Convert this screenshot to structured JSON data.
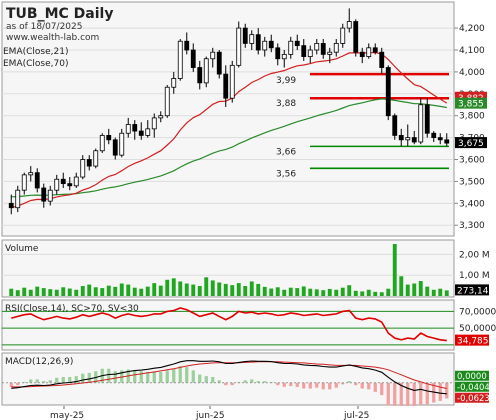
{
  "header": {
    "title": "TUB_MC Daily",
    "date": "as of 18/07/2025",
    "site": "www.wealth-lab.com",
    "ema21": "EMA(Close,21)",
    "ema70": "EMA(Close,70)"
  },
  "colors": {
    "bg": "#ffffff",
    "plot_bg": "#f3f3f3",
    "up_candle": "#ffffff",
    "down_candle": "#000000",
    "ema21": "#d22020",
    "ema70": "#2a8a2a",
    "resistance": "#e00000",
    "support": "#008800",
    "volume": "#1fa81f",
    "rsi": "#e00000",
    "rsi_band": "#1a8a1a"
  },
  "price_levels": [
    {
      "label": "3,99",
      "value": 3990,
      "kind": "resistance"
    },
    {
      "label": "3,88",
      "value": 3880,
      "kind": "resistance"
    },
    {
      "label": "3,66",
      "value": 3660,
      "kind": "support"
    },
    {
      "label": "3,56",
      "value": 3560,
      "kind": "support"
    }
  ],
  "price_badges": [
    {
      "text": "3,882",
      "value": 3882,
      "color": "#d22020"
    },
    {
      "text": "3,855",
      "value": 3855,
      "color": "#2a8a2a"
    },
    {
      "text": "3,675",
      "value": 3675,
      "color": "#000000"
    }
  ],
  "price_ticks": [
    "4,200",
    "4,100",
    "4,000",
    "3,900",
    "3,800",
    "3,700",
    "3,600",
    "3,500",
    "3,400",
    "3,300"
  ],
  "volume": {
    "label": "Volume",
    "ticks": [
      "2,00 M",
      "1,00 M"
    ],
    "badge": "273,148"
  },
  "rsi": {
    "label": "RSI(Close,14), SC>70, SV<30",
    "ticks": [
      "70,0000",
      "50,0000"
    ],
    "badge": "34,7852"
  },
  "macd": {
    "label": "MACD(12,26,9)",
    "badge_top": "0,0000",
    "badge_mid": "-0,0404",
    "badge_bot": "-0,0623"
  },
  "x_axis": {
    "labels": [
      "may-25",
      "jun-25",
      "jul-25"
    ]
  },
  "chart_data": {
    "type": "candlestick",
    "title": "TUB_MC Daily",
    "ylim": [
      3260,
      4310
    ],
    "candles": [
      [
        3400,
        3440,
        3350,
        3380
      ],
      [
        3380,
        3480,
        3360,
        3460
      ],
      [
        3460,
        3540,
        3440,
        3530
      ],
      [
        3530,
        3570,
        3500,
        3540
      ],
      [
        3540,
        3560,
        3450,
        3470
      ],
      [
        3470,
        3490,
        3380,
        3410
      ],
      [
        3410,
        3480,
        3390,
        3460
      ],
      [
        3460,
        3530,
        3440,
        3510
      ],
      [
        3510,
        3540,
        3470,
        3490
      ],
      [
        3490,
        3520,
        3460,
        3480
      ],
      [
        3480,
        3540,
        3470,
        3520
      ],
      [
        3520,
        3620,
        3510,
        3600
      ],
      [
        3600,
        3620,
        3550,
        3570
      ],
      [
        3570,
        3650,
        3560,
        3640
      ],
      [
        3640,
        3720,
        3630,
        3710
      ],
      [
        3710,
        3740,
        3670,
        3690
      ],
      [
        3690,
        3700,
        3600,
        3620
      ],
      [
        3620,
        3740,
        3610,
        3720
      ],
      [
        3720,
        3790,
        3700,
        3760
      ],
      [
        3760,
        3780,
        3690,
        3730
      ],
      [
        3730,
        3770,
        3690,
        3710
      ],
      [
        3710,
        3780,
        3700,
        3740
      ],
      [
        3740,
        3810,
        3700,
        3790
      ],
      [
        3790,
        3820,
        3770,
        3800
      ],
      [
        3800,
        3940,
        3790,
        3930
      ],
      [
        3930,
        4000,
        3900,
        3970
      ],
      [
        3970,
        4150,
        3960,
        4140
      ],
      [
        4140,
        4180,
        4080,
        4100
      ],
      [
        4100,
        4130,
        4000,
        4020
      ],
      [
        4020,
        4050,
        3920,
        3950
      ],
      [
        3950,
        4070,
        3930,
        4060
      ],
      [
        4060,
        4110,
        4020,
        4090
      ],
      [
        4090,
        4100,
        3970,
        3990
      ],
      [
        3990,
        4030,
        3840,
        3880
      ],
      [
        3880,
        4050,
        3860,
        4030
      ],
      [
        4030,
        4230,
        4020,
        4200
      ],
      [
        4200,
        4220,
        4110,
        4130
      ],
      [
        4130,
        4190,
        4100,
        4170
      ],
      [
        4170,
        4200,
        4080,
        4100
      ],
      [
        4100,
        4160,
        4070,
        4140
      ],
      [
        4140,
        4170,
        4090,
        4110
      ],
      [
        4110,
        4130,
        4030,
        4060
      ],
      [
        4060,
        4100,
        4020,
        4080
      ],
      [
        4080,
        4160,
        4060,
        4140
      ],
      [
        4140,
        4170,
        4100,
        4120
      ],
      [
        4120,
        4150,
        4050,
        4070
      ],
      [
        4070,
        4120,
        4040,
        4100
      ],
      [
        4100,
        4150,
        4080,
        4130
      ],
      [
        4130,
        4150,
        4060,
        4080
      ],
      [
        4080,
        4110,
        4040,
        4090
      ],
      [
        4090,
        4150,
        4070,
        4130
      ],
      [
        4130,
        4220,
        4110,
        4200
      ],
      [
        4200,
        4290,
        4180,
        4230
      ],
      [
        4230,
        4240,
        4070,
        4090
      ],
      [
        4090,
        4110,
        4040,
        4070
      ],
      [
        4070,
        4130,
        4060,
        4110
      ],
      [
        4110,
        4130,
        4080,
        4090
      ],
      [
        4090,
        4110,
        3990,
        4020
      ],
      [
        4020,
        4030,
        3780,
        3800
      ],
      [
        3800,
        3810,
        3690,
        3710
      ],
      [
        3710,
        3740,
        3660,
        3690
      ],
      [
        3690,
        3760,
        3660,
        3700
      ],
      [
        3700,
        3730,
        3670,
        3680
      ],
      [
        3680,
        3880,
        3670,
        3850
      ],
      [
        3850,
        3880,
        3700,
        3720
      ],
      [
        3720,
        3730,
        3680,
        3700
      ],
      [
        3700,
        3720,
        3670,
        3690
      ],
      [
        3690,
        3720,
        3660,
        3675
      ]
    ],
    "volume": [
      0.35,
      0.28,
      0.4,
      0.3,
      0.45,
      0.38,
      0.33,
      0.3,
      0.42,
      0.36,
      0.3,
      0.48,
      0.55,
      0.42,
      0.38,
      0.5,
      0.44,
      0.6,
      0.55,
      0.4,
      0.35,
      0.45,
      0.62,
      0.5,
      0.78,
      0.85,
      0.7,
      0.6,
      0.55,
      0.48,
      0.9,
      0.75,
      0.65,
      0.58,
      0.52,
      0.62,
      0.48,
      0.7,
      0.58,
      0.44,
      0.36,
      0.42,
      0.3,
      0.4,
      0.38,
      0.46,
      0.35,
      0.32,
      0.28,
      0.34,
      0.3,
      0.4,
      0.52,
      0.25,
      0.22,
      0.3,
      0.2,
      0.18,
      0.35,
      2.5,
      0.95,
      0.55,
      0.6,
      0.72,
      0.45,
      0.3,
      0.35,
      0.27
    ],
    "rsi": [
      62,
      64,
      66,
      67,
      63,
      60,
      62,
      64,
      62,
      61,
      63,
      66,
      64,
      66,
      68,
      66,
      62,
      65,
      67,
      65,
      64,
      65,
      67,
      67,
      70,
      71,
      74,
      72,
      68,
      64,
      66,
      68,
      64,
      60,
      64,
      70,
      68,
      69,
      67,
      68,
      67,
      65,
      66,
      68,
      67,
      65,
      66,
      67,
      65,
      66,
      67,
      70,
      71,
      62,
      60,
      62,
      61,
      57,
      44,
      38,
      36,
      38,
      37,
      44,
      40,
      38,
      36,
      35
    ],
    "macd": [
      -0.02,
      -0.018,
      -0.014,
      -0.01,
      -0.009,
      -0.01,
      -0.008,
      -0.004,
      -0.001,
      0.001,
      0.004,
      0.01,
      0.014,
      0.019,
      0.026,
      0.03,
      0.031,
      0.036,
      0.041,
      0.044,
      0.046,
      0.049,
      0.053,
      0.056,
      0.062,
      0.068,
      0.076,
      0.08,
      0.08,
      0.078,
      0.078,
      0.079,
      0.076,
      0.07,
      0.07,
      0.074,
      0.077,
      0.079,
      0.078,
      0.078,
      0.077,
      0.073,
      0.07,
      0.07,
      0.068,
      0.065,
      0.063,
      0.062,
      0.059,
      0.057,
      0.057,
      0.061,
      0.065,
      0.06,
      0.054,
      0.051,
      0.046,
      0.038,
      0.02,
      0.003,
      -0.01,
      -0.02,
      -0.028,
      -0.024,
      -0.03,
      -0.034,
      -0.038,
      -0.04
    ],
    "signal": [
      -0.015,
      -0.015,
      -0.015,
      -0.014,
      -0.013,
      -0.012,
      -0.011,
      -0.01,
      -0.008,
      -0.006,
      -0.004,
      -0.001,
      0.002,
      0.005,
      0.009,
      0.013,
      0.017,
      0.021,
      0.025,
      0.029,
      0.032,
      0.036,
      0.039,
      0.043,
      0.047,
      0.051,
      0.056,
      0.061,
      0.065,
      0.068,
      0.07,
      0.072,
      0.073,
      0.073,
      0.073,
      0.073,
      0.074,
      0.075,
      0.076,
      0.076,
      0.076,
      0.076,
      0.075,
      0.074,
      0.073,
      0.072,
      0.07,
      0.068,
      0.067,
      0.065,
      0.063,
      0.063,
      0.063,
      0.063,
      0.061,
      0.059,
      0.057,
      0.053,
      0.047,
      0.038,
      0.029,
      0.019,
      0.01,
      0.003,
      -0.004,
      -0.01,
      -0.016,
      -0.021
    ]
  }
}
